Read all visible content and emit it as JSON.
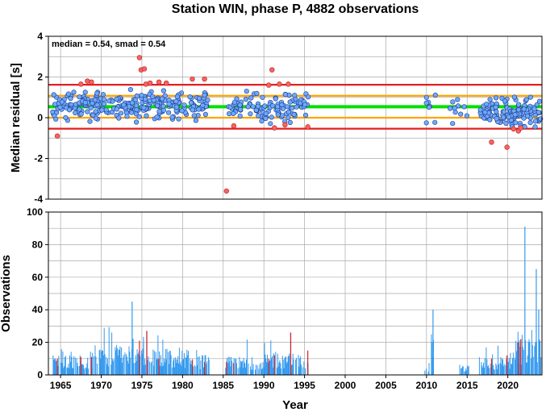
{
  "chart_data": [
    {
      "type": "scatter",
      "title": "Station WIN, phase P, 4882 observations",
      "ylabel": "Median residual [s]",
      "annotation": "median = 0.54, smad = 0.54",
      "xlim": [
        1963.5,
        2024.2
      ],
      "ylim": [
        -4,
        4
      ],
      "yticks": [
        "4",
        "2",
        "0",
        "-2",
        "-4"
      ],
      "ytick_values": [
        4,
        2,
        0,
        -2,
        -4
      ],
      "grid": true,
      "reference_lines": [
        {
          "y": 0.54,
          "color": "#00e000",
          "label": "median"
        },
        {
          "y": 1.08,
          "color": "#ffa500",
          "label": "median + smad"
        },
        {
          "y": 0.0,
          "color": "#ffa500",
          "label": "median - smad"
        },
        {
          "y": 1.62,
          "color": "#e02020",
          "label": "median + 2 smad"
        },
        {
          "y": -0.54,
          "color": "#e02020",
          "label": "median - 2 smad"
        }
      ],
      "colors": {
        "inlier": "#6fa8ff",
        "outlier": "#ff6060"
      },
      "outliers": [
        [
          1964.6,
          -0.9
        ],
        [
          1967.5,
          1.65
        ],
        [
          1968.3,
          1.8
        ],
        [
          1968.8,
          1.75
        ],
        [
          1974.7,
          2.95
        ],
        [
          1974.9,
          2.35
        ],
        [
          1975.3,
          2.4
        ],
        [
          1975.5,
          1.65
        ],
        [
          1976.0,
          1.7
        ],
        [
          1977.1,
          1.75
        ],
        [
          1978.0,
          1.7
        ],
        [
          1981.2,
          1.9
        ],
        [
          1982.7,
          1.9
        ],
        [
          1985.4,
          -3.6
        ],
        [
          1990.6,
          1.6
        ],
        [
          1991.0,
          2.35
        ],
        [
          1991.9,
          1.65
        ],
        [
          1993.0,
          1.65
        ],
        [
          1991.3,
          -0.5
        ],
        [
          1992.6,
          -0.35
        ],
        [
          1995.4,
          -0.45
        ],
        [
          1986.3,
          -0.4
        ],
        [
          2018.0,
          -1.2
        ],
        [
          2019.9,
          -1.45
        ],
        [
          2020.7,
          -0.55
        ],
        [
          2021.3,
          -0.65
        ],
        [
          2021.6,
          -0.5
        ]
      ],
      "inlier_clusters": [
        {
          "range": [
            1964.0,
            1983.3
          ],
          "center": 0.6,
          "spread": 0.5,
          "count": 270
        },
        {
          "range": [
            1985.3,
            1995.5
          ],
          "center": 0.55,
          "spread": 0.5,
          "count": 110
        },
        {
          "range": [
            2009.8,
            2011.2
          ],
          "center": 0.6,
          "spread": 0.6,
          "count": 8
        },
        {
          "range": [
            2012.8,
            2015.2
          ],
          "center": 0.35,
          "spread": 0.45,
          "count": 10
        },
        {
          "range": [
            2016.5,
            2024.1
          ],
          "center": 0.25,
          "spread": 0.5,
          "count": 130
        }
      ]
    },
    {
      "type": "bar",
      "xlabel": "Year",
      "ylabel": "Observations",
      "xlim": [
        1963.5,
        2024.2
      ],
      "ylim": [
        0,
        100
      ],
      "xticks": [
        "1965",
        "1970",
        "1975",
        "1980",
        "1985",
        "1990",
        "1995",
        "2000",
        "2005",
        "2010",
        "2015",
        "2020"
      ],
      "xtick_values": [
        1965,
        1970,
        1975,
        1980,
        1985,
        1990,
        1995,
        2000,
        2005,
        2010,
        2015,
        2020
      ],
      "yticks": [
        "100",
        "80",
        "60",
        "40",
        "20",
        "0"
      ],
      "ytick_values": [
        100,
        80,
        60,
        40,
        20,
        0
      ],
      "grid": true,
      "colors": {
        "bar": "#3399ee",
        "outlier_bar": "#dd2222"
      },
      "activity_ranges": [
        {
          "range": [
            1964.0,
            1969.0
          ],
          "level": 10,
          "peak": 16
        },
        {
          "range": [
            1969.0,
            1973.5
          ],
          "level": 15,
          "peak": 30
        },
        {
          "range": [
            1973.5,
            1974.0
          ],
          "level": 18,
          "peak": 45
        },
        {
          "range": [
            1974.0,
            1978.5
          ],
          "level": 13,
          "peak": 27
        },
        {
          "range": [
            1978.5,
            1983.3
          ],
          "level": 10,
          "peak": 17
        },
        {
          "range": [
            1985.3,
            1990.0
          ],
          "level": 9,
          "peak": 22
        },
        {
          "range": [
            1990.0,
            1995.6
          ],
          "level": 11,
          "peak": 26
        },
        {
          "range": [
            2009.8,
            2010.6
          ],
          "level": 5,
          "peak": 8
        },
        {
          "range": [
            2010.6,
            2011.0
          ],
          "level": 20,
          "peak": 40
        },
        {
          "range": [
            2014.0,
            2015.2
          ],
          "level": 5,
          "peak": 12
        },
        {
          "range": [
            2016.5,
            2021.0
          ],
          "level": 9,
          "peak": 22
        },
        {
          "range": [
            2021.0,
            2024.1
          ],
          "level": 18,
          "peak": 38
        }
      ],
      "spikes": [
        [
          1973.8,
          45
        ],
        [
          1975.2,
          20
        ],
        [
          1975.6,
          27
        ],
        [
          1993.3,
          26
        ],
        [
          2010.8,
          40
        ],
        [
          2022.1,
          91
        ],
        [
          2023.5,
          65
        ],
        [
          2023.8,
          40
        ]
      ],
      "outlier_bars": [
        [
          1964.6,
          10
        ],
        [
          1967.5,
          11
        ],
        [
          1968.8,
          11
        ],
        [
          1974.7,
          21
        ],
        [
          1975.6,
          27
        ],
        [
          1977.1,
          10
        ],
        [
          1981.2,
          9
        ],
        [
          1982.7,
          8
        ],
        [
          1985.4,
          8
        ],
        [
          1986.3,
          7
        ],
        [
          1990.6,
          10
        ],
        [
          1991.3,
          12
        ],
        [
          1993.3,
          26
        ],
        [
          1995.4,
          15
        ],
        [
          2018.0,
          10
        ],
        [
          2019.9,
          12
        ],
        [
          2021.3,
          20
        ],
        [
          2021.6,
          22
        ]
      ]
    }
  ]
}
